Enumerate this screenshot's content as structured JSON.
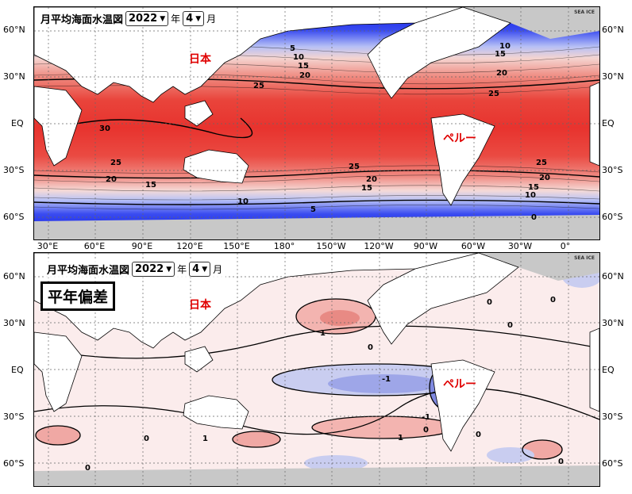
{
  "header": {
    "title": "月平均海面水温図",
    "year": "2022",
    "year_unit": "年",
    "month": "4",
    "month_unit": "月",
    "sea_ice": "SEA ICE"
  },
  "anomaly_title": "平年偏差",
  "place_labels": {
    "japan": "日本",
    "peru": "ペルー"
  },
  "lat_labels": [
    "60°N",
    "30°N",
    "EQ",
    "30°S",
    "60°S"
  ],
  "lon_labels": [
    "30°E",
    "60°E",
    "90°E",
    "120°E",
    "150°E",
    "180°",
    "150°W",
    "120°W",
    "90°W",
    "60°W",
    "30°W",
    "0°"
  ],
  "sst_contour_labels": [
    "5",
    "10",
    "15",
    "20",
    "25",
    "30",
    "25",
    "20",
    "15",
    "10",
    "5",
    "0",
    "10",
    "15",
    "20",
    "25",
    "25",
    "20",
    "15",
    "10",
    "25",
    "20",
    "15"
  ],
  "anomaly_contour_labels": [
    "1",
    "0",
    "-1",
    "0",
    "0",
    "0",
    "1",
    "0",
    "0",
    "1",
    "-1",
    "0",
    "0",
    "0"
  ],
  "colors": {
    "warm": "#e8332e",
    "cold": "#1020e0",
    "land": "#ffffff",
    "ice": "#c8c8c8",
    "label": "#e00000"
  }
}
